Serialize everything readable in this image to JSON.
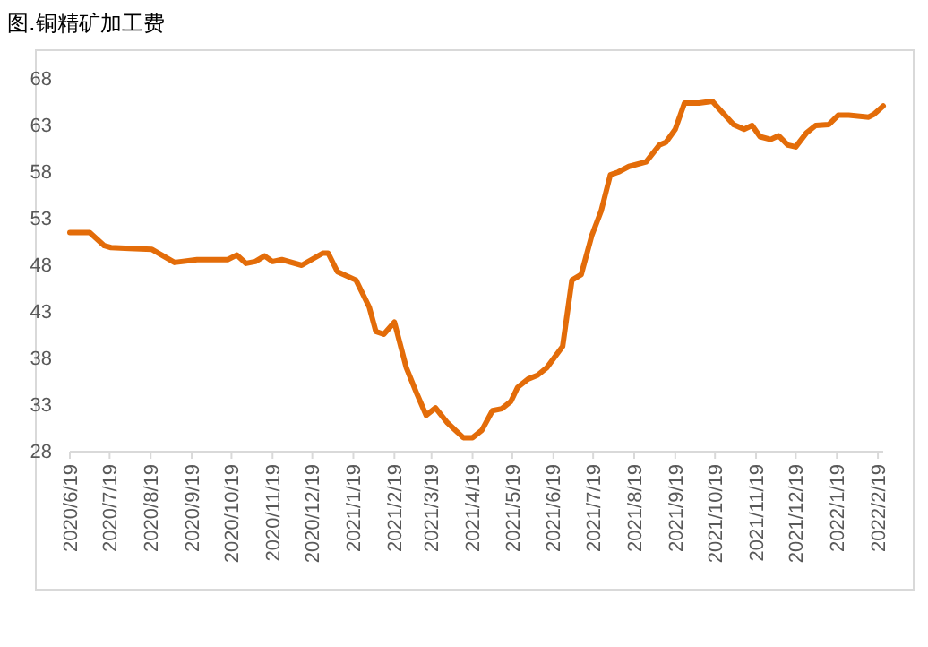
{
  "chart_data": {
    "type": "line",
    "title": "图.铜精矿加工费",
    "x": [
      "2020-06-19",
      "2020-07-04",
      "2020-07-15",
      "2020-07-20",
      "2020-08-03",
      "2020-08-20",
      "2020-09-06",
      "2020-09-23",
      "2020-10-16",
      "2020-10-23",
      "2020-10-30",
      "2020-11-06",
      "2020-11-13",
      "2020-11-19",
      "2020-11-26",
      "2020-12-11",
      "2020-12-27",
      "2020-12-31",
      "2021-01-07",
      "2021-01-21",
      "2021-01-31",
      "2021-02-05",
      "2021-02-11",
      "2021-02-19",
      "2021-02-28",
      "2021-03-08",
      "2021-03-15",
      "2021-03-22",
      "2021-03-31",
      "2021-04-12",
      "2021-04-19",
      "2021-04-26",
      "2021-05-04",
      "2021-05-11",
      "2021-05-18",
      "2021-05-23",
      "2021-05-31",
      "2021-06-07",
      "2021-06-14",
      "2021-06-26",
      "2021-07-03",
      "2021-07-10",
      "2021-07-18",
      "2021-07-25",
      "2021-08-01",
      "2021-08-07",
      "2021-08-15",
      "2021-08-28",
      "2021-09-07",
      "2021-09-12",
      "2021-09-19",
      "2021-09-26",
      "2021-10-07",
      "2021-10-17",
      "2021-10-24",
      "2021-11-02",
      "2021-11-10",
      "2021-11-16",
      "2021-11-22",
      "2021-11-30",
      "2021-12-06",
      "2021-12-13",
      "2021-12-19",
      "2021-12-27",
      "2022-01-03",
      "2022-01-13",
      "2022-01-20",
      "2022-01-28",
      "2022-02-12",
      "2022-02-16",
      "2022-02-23"
    ],
    "series": [
      {
        "color": "#e36c09",
        "values": [
          51.5,
          51.5,
          50.1,
          49.9,
          49.8,
          49.7,
          48.3,
          48.6,
          48.6,
          49.1,
          48.2,
          48.4,
          49.0,
          48.4,
          48.6,
          48.0,
          49.3,
          49.3,
          47.3,
          46.4,
          43.5,
          40.9,
          40.6,
          41.9,
          37.0,
          34.2,
          31.9,
          32.7,
          31.1,
          29.5,
          29.5,
          30.3,
          32.4,
          32.6,
          33.4,
          34.9,
          35.8,
          36.2,
          37.0,
          39.3,
          46.4,
          47.0,
          51.2,
          53.8,
          57.7,
          58.0,
          58.6,
          59.1,
          60.9,
          61.2,
          62.6,
          65.4,
          65.4,
          65.6,
          64.5,
          63.1,
          62.6,
          63.0,
          61.8,
          61.5,
          61.9,
          60.9,
          60.7,
          62.2,
          63.0,
          63.1,
          64.1,
          64.1,
          63.9,
          64.2,
          65.1
        ]
      }
    ],
    "xlim": [
      "2020-06-19",
      "2022-02-23"
    ],
    "xticks": [
      {
        "value": "2020-06-19",
        "label": "2020/6/19"
      },
      {
        "value": "2020-07-19",
        "label": "2020/7/19"
      },
      {
        "value": "2020-08-19",
        "label": "2020/8/19"
      },
      {
        "value": "2020-09-19",
        "label": "2020/9/19"
      },
      {
        "value": "2020-10-19",
        "label": "2020/10/19"
      },
      {
        "value": "2020-11-19",
        "label": "2020/11/19"
      },
      {
        "value": "2020-12-19",
        "label": "2020/12/19"
      },
      {
        "value": "2021-01-19",
        "label": "2021/1/19"
      },
      {
        "value": "2021-02-19",
        "label": "2021/2/19"
      },
      {
        "value": "2021-03-19",
        "label": "2021/3/19"
      },
      {
        "value": "2021-04-19",
        "label": "2021/4/19"
      },
      {
        "value": "2021-05-19",
        "label": "2021/5/19"
      },
      {
        "value": "2021-06-19",
        "label": "2021/6/19"
      },
      {
        "value": "2021-07-19",
        "label": "2021/7/19"
      },
      {
        "value": "2021-08-19",
        "label": "2021/8/19"
      },
      {
        "value": "2021-09-19",
        "label": "2021/9/19"
      },
      {
        "value": "2021-10-19",
        "label": "2021/10/19"
      },
      {
        "value": "2021-11-19",
        "label": "2021/11/19"
      },
      {
        "value": "2021-12-19",
        "label": "2021/12/19"
      },
      {
        "value": "2022-01-19",
        "label": "2022/1/19"
      },
      {
        "value": "2022-02-19",
        "label": "2022/2/19"
      }
    ],
    "ylim": [
      28,
      68
    ],
    "yticks": [
      28,
      33,
      38,
      43,
      48,
      53,
      58,
      63,
      68
    ],
    "grid": false,
    "marker": "none",
    "line_style": "solid"
  }
}
